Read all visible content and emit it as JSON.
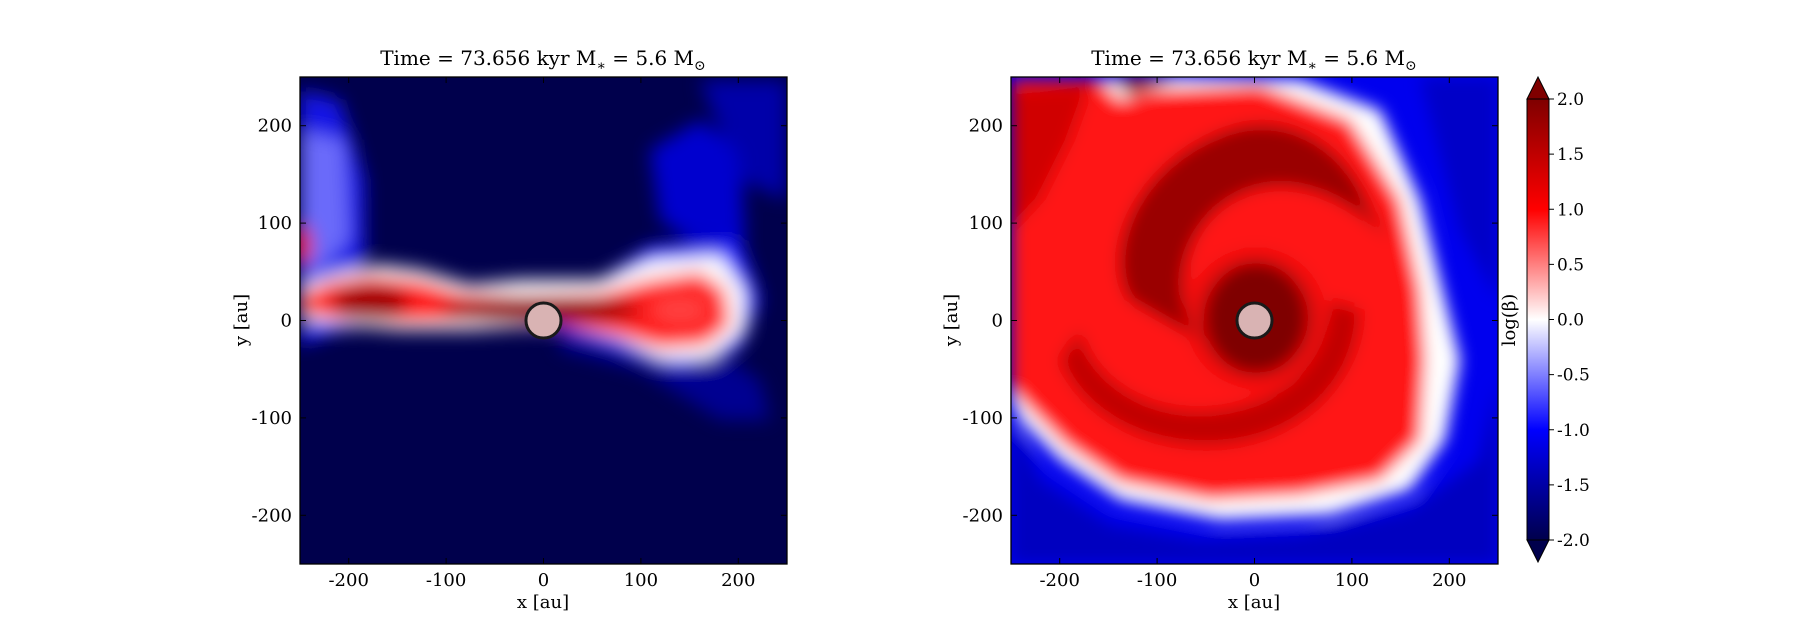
{
  "chart_data": [
    {
      "type": "heatmap",
      "title": "Time = 73.656 kyr   M$_*$ = 5.6 M$_\\odot$",
      "title_text": "Time = 73.656 kyr    M",
      "title_star": "∗",
      "title_mass": " = 5.6 M",
      "title_sun": "⊙",
      "xlabel": "x [au]",
      "ylabel": "y [au]",
      "xlim": [
        -250,
        250
      ],
      "ylim": [
        -250,
        250
      ],
      "xticks": [
        -200,
        -100,
        0,
        100,
        200
      ],
      "yticks": [
        -200,
        -100,
        0,
        100,
        200
      ],
      "xtick_labels": [
        "-200",
        "-100",
        "0",
        "100",
        "200"
      ],
      "ytick_labels": [
        "-200",
        "-100",
        "0",
        "100",
        "200"
      ],
      "view": "edge-on",
      "sink_marker": {
        "x": 0,
        "y": 0,
        "radius": 18
      }
    },
    {
      "type": "heatmap",
      "title": "Time = 73.656 kyr   M$_*$ = 5.6 M$_\\odot$",
      "title_text": "Time = 73.656 kyr    M",
      "title_star": "∗",
      "title_mass": " = 5.6 M",
      "title_sun": "⊙",
      "xlabel": "x [au]",
      "ylabel": "y [au]",
      "xlim": [
        -250,
        250
      ],
      "ylim": [
        -250,
        250
      ],
      "xticks": [
        -200,
        -100,
        0,
        100,
        200
      ],
      "yticks": [
        -200,
        -100,
        0,
        100,
        200
      ],
      "xtick_labels": [
        "-200",
        "-100",
        "0",
        "100",
        "200"
      ],
      "ytick_labels": [
        "-200",
        "-100",
        "0",
        "100",
        "200"
      ],
      "view": "face-on",
      "sink_marker": {
        "x": 0,
        "y": 0,
        "radius": 18
      }
    }
  ],
  "colorbar": {
    "label": "log(β)",
    "range": [
      -2.0,
      2.0
    ],
    "ticks": [
      2.0,
      1.5,
      1.0,
      0.5,
      0.0,
      -0.5,
      -1.0,
      -1.5,
      -2.0
    ],
    "tick_labels": [
      "2.0",
      "1.5",
      "1.0",
      "0.5",
      "0.0",
      "-0.5",
      "-1.0",
      "-1.5",
      "-2.0"
    ],
    "extend": "both",
    "colormap": "seismic"
  },
  "colors": {
    "deep_blue": "#00004c",
    "blue": "#0000ff",
    "white": "#ffffff",
    "red": "#ff0000",
    "deep_red": "#7f0000",
    "sink_fill": "#d9b3b3",
    "sink_edge": "#1a1a1a"
  }
}
